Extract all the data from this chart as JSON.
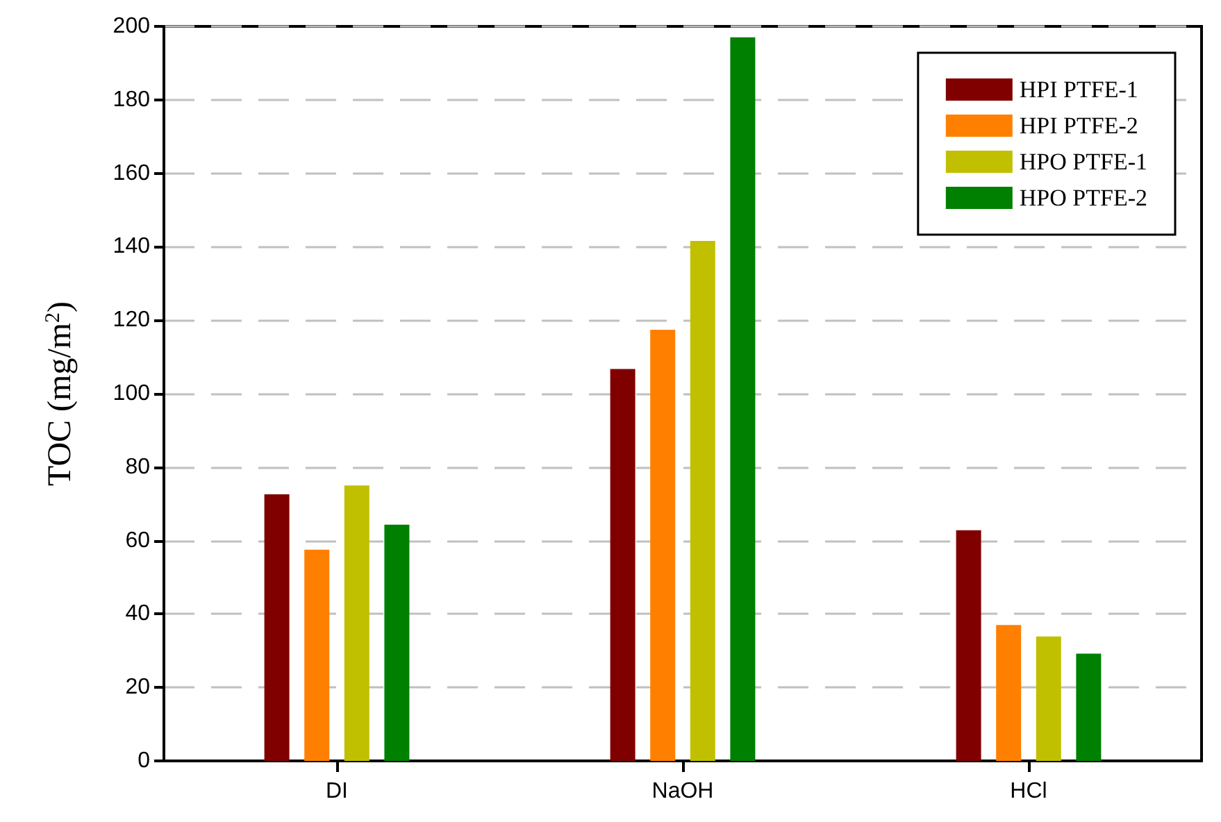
{
  "chart_data": {
    "type": "bar",
    "ylabel": "TOC (mg/m$^{2}$)",
    "categories": [
      "DI",
      "NaOH",
      "HCl"
    ],
    "series": [
      {
        "name": "HPI PTFE-1",
        "color": "#800000",
        "values": [
          72.6,
          106.7,
          62.8
        ]
      },
      {
        "name": "HPI PTFE-2",
        "color": "#ff8000",
        "values": [
          57.5,
          117.4,
          37
        ]
      },
      {
        "name": "HPO PTFE-1",
        "color": "#c0c000",
        "values": [
          75,
          141.6,
          33.9
        ]
      },
      {
        "name": "HPO PTFE-2",
        "color": "#008000",
        "values": [
          64.3,
          197,
          29.2
        ]
      }
    ],
    "ylim": [
      0,
      200
    ],
    "yticks": [
      0,
      20,
      40,
      60,
      80,
      100,
      120,
      140,
      160,
      180,
      200
    ],
    "grid": "y",
    "legend": "top right"
  }
}
